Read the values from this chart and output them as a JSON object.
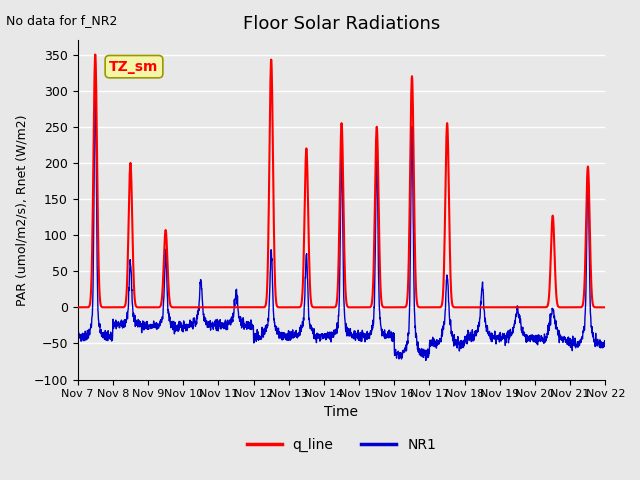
{
  "title": "Floor Solar Radiations",
  "xlabel": "Time",
  "ylabel": "PAR (umol/m2/s), Rnet (W/m2)",
  "top_left_text": "No data for f_NR2",
  "box_label": "TZ_sm",
  "ylim": [
    -100,
    370
  ],
  "yticks": [
    -100,
    -50,
    0,
    50,
    100,
    150,
    200,
    250,
    300,
    350
  ],
  "x_tick_labels": [
    "Nov 7",
    "Nov 8",
    "Nov 9",
    "Nov 10",
    "Nov 11",
    "Nov 12",
    "Nov 13",
    "Nov 14",
    "Nov 15",
    "Nov 16",
    "Nov 17",
    "Nov 18",
    "Nov 19",
    "Nov 20",
    "Nov 21",
    "Nov 22"
  ],
  "legend_entries": [
    "q_line",
    "NR1"
  ],
  "legend_colors": [
    "#ff0000",
    "#0000cc"
  ],
  "line_colors": {
    "q_line": "#ff0000",
    "NR1": "#0000cc"
  },
  "background_color": "#e8e8e8",
  "plot_bg_color": "#e8e8e8",
  "grid_color": "#ffffff",
  "num_days": 15,
  "points_per_day": 144,
  "q_day_peaks": [
    350,
    200,
    107,
    0,
    0,
    343,
    220,
    255,
    250,
    320,
    255,
    0,
    0,
    127,
    195
  ],
  "nr1_day_peaks": [
    315,
    70,
    80,
    47,
    30,
    90,
    85,
    225,
    220,
    275,
    60,
    45,
    10,
    10,
    208
  ],
  "nr1_night_vals": [
    -40,
    -25,
    -27,
    -25,
    -25,
    -40,
    -40,
    -40,
    -40,
    -65,
    -50,
    -42,
    -42,
    -45,
    -50
  ]
}
